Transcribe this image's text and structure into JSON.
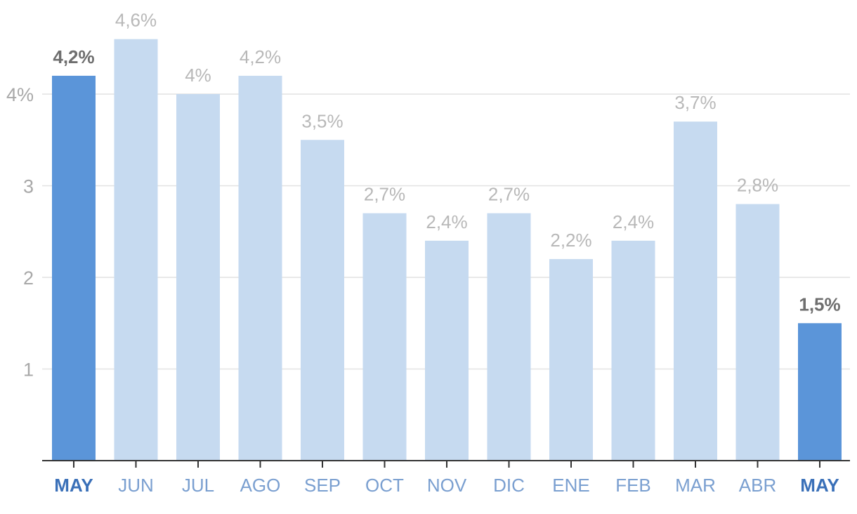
{
  "chart_data": {
    "type": "bar",
    "categories": [
      "MAY",
      "JUN",
      "JUL",
      "AGO",
      "SEP",
      "OCT",
      "NOV",
      "DIC",
      "ENE",
      "FEB",
      "MAR",
      "ABR",
      "MAY"
    ],
    "values": [
      4.2,
      4.6,
      4.0,
      4.2,
      3.5,
      2.7,
      2.4,
      2.7,
      2.2,
      2.4,
      3.7,
      2.8,
      1.5
    ],
    "data_labels": [
      "4,2%",
      "4,6%",
      "4%",
      "4,2%",
      "3,5%",
      "2,7%",
      "2,4%",
      "2,7%",
      "2,2%",
      "2,4%",
      "3,7%",
      "2,8%",
      "1,5%"
    ],
    "highlighted": [
      true,
      false,
      false,
      false,
      false,
      false,
      false,
      false,
      false,
      false,
      false,
      false,
      true
    ],
    "yticks": [
      1,
      2,
      3,
      4
    ],
    "ytick_labels": [
      "1",
      "2",
      "3",
      "4%"
    ],
    "ylim": [
      0,
      4.6
    ],
    "grid": true,
    "colors": {
      "highlight_bar": "#5b95d9",
      "normal_bar": "#c6daf0",
      "highlight_label": "#6e6e6e",
      "normal_label": "#b8b8b8",
      "highlight_category": "#3a70b8",
      "normal_category": "#7a9fd0"
    }
  }
}
